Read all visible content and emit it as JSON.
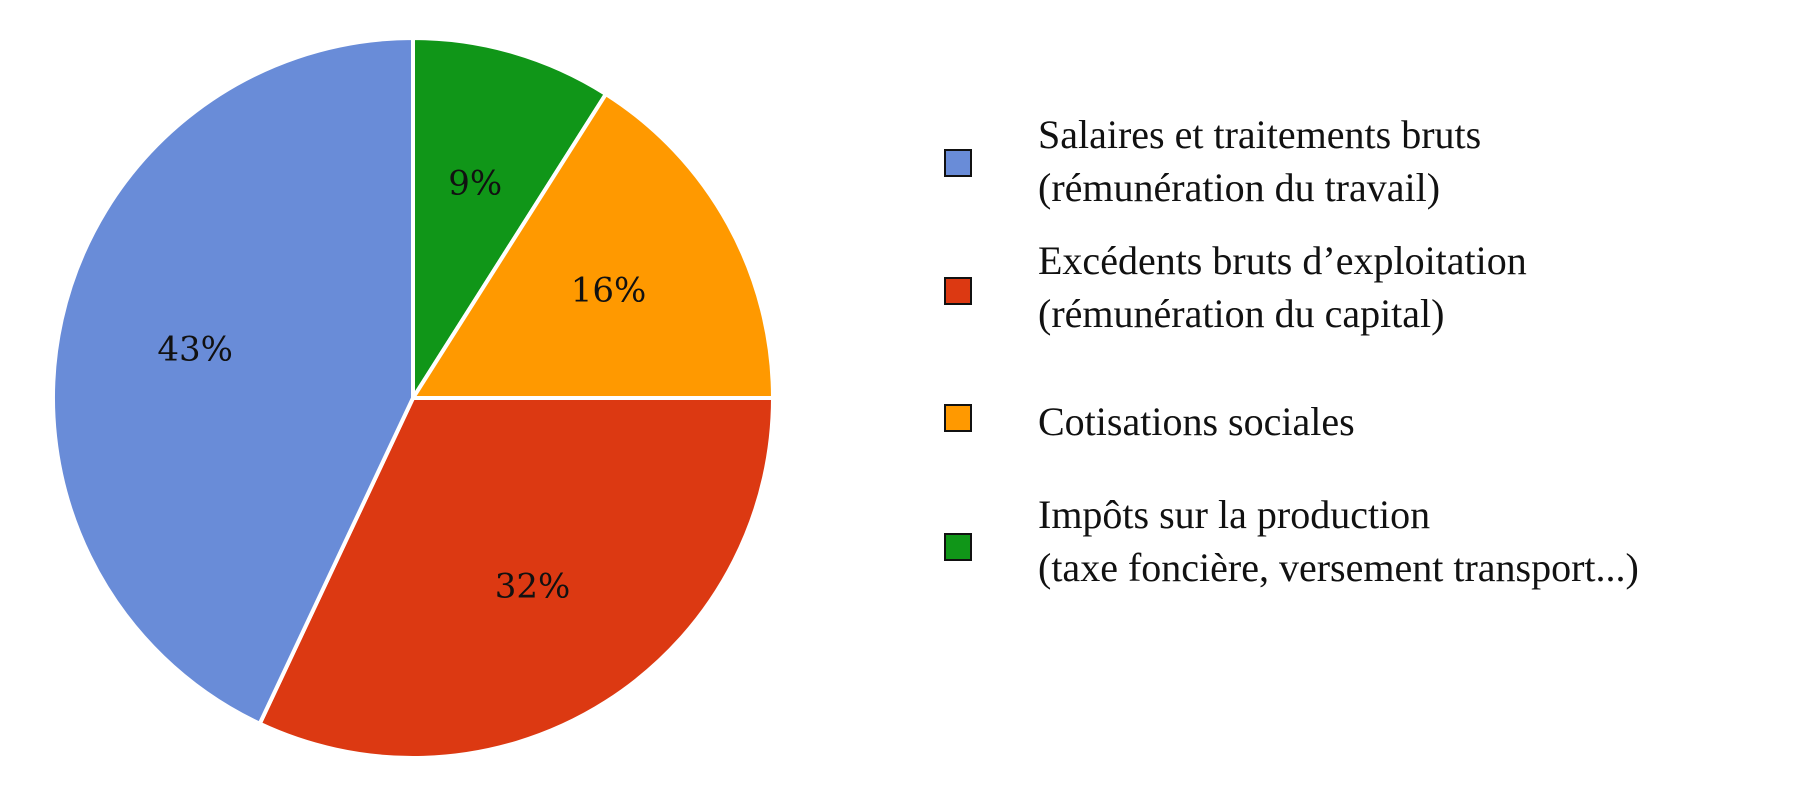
{
  "chart_data": {
    "type": "pie",
    "title": "",
    "start_angle_deg": 0,
    "direction": "clockwise",
    "slices": [
      {
        "key": "impots",
        "label": "Impôts sur la production (taxe foncière, versement transport...)",
        "value": 9,
        "display": "9%",
        "color": "#109618"
      },
      {
        "key": "cotisations",
        "label": "Cotisations sociales",
        "value": 16,
        "display": "16%",
        "color": "#ff9900"
      },
      {
        "key": "ebe",
        "label": "Excédents bruts d’exploitation (rémunération du capital)",
        "value": 32,
        "display": "32%",
        "color": "#dc3912"
      },
      {
        "key": "salaires",
        "label": "Salaires et traitements bruts (rémunération du travail)",
        "value": 43,
        "display": "43%",
        "color": "#698cd8"
      }
    ],
    "legend_position": "right"
  },
  "legend": {
    "items": [
      {
        "line1": "Salaires et traitements bruts",
        "line2": "(rémunération du travail)",
        "color": "#698cd8"
      },
      {
        "line1": "Excédents bruts d’exploitation",
        "line2": "(rémunération du capital)",
        "color": "#dc3912"
      },
      {
        "line1": "Cotisations sociales",
        "line2": "",
        "color": "#ff9900"
      },
      {
        "line1": "Impôts sur la production",
        "line2": "(taxe foncière, versement transport...)",
        "color": "#109618"
      }
    ]
  }
}
